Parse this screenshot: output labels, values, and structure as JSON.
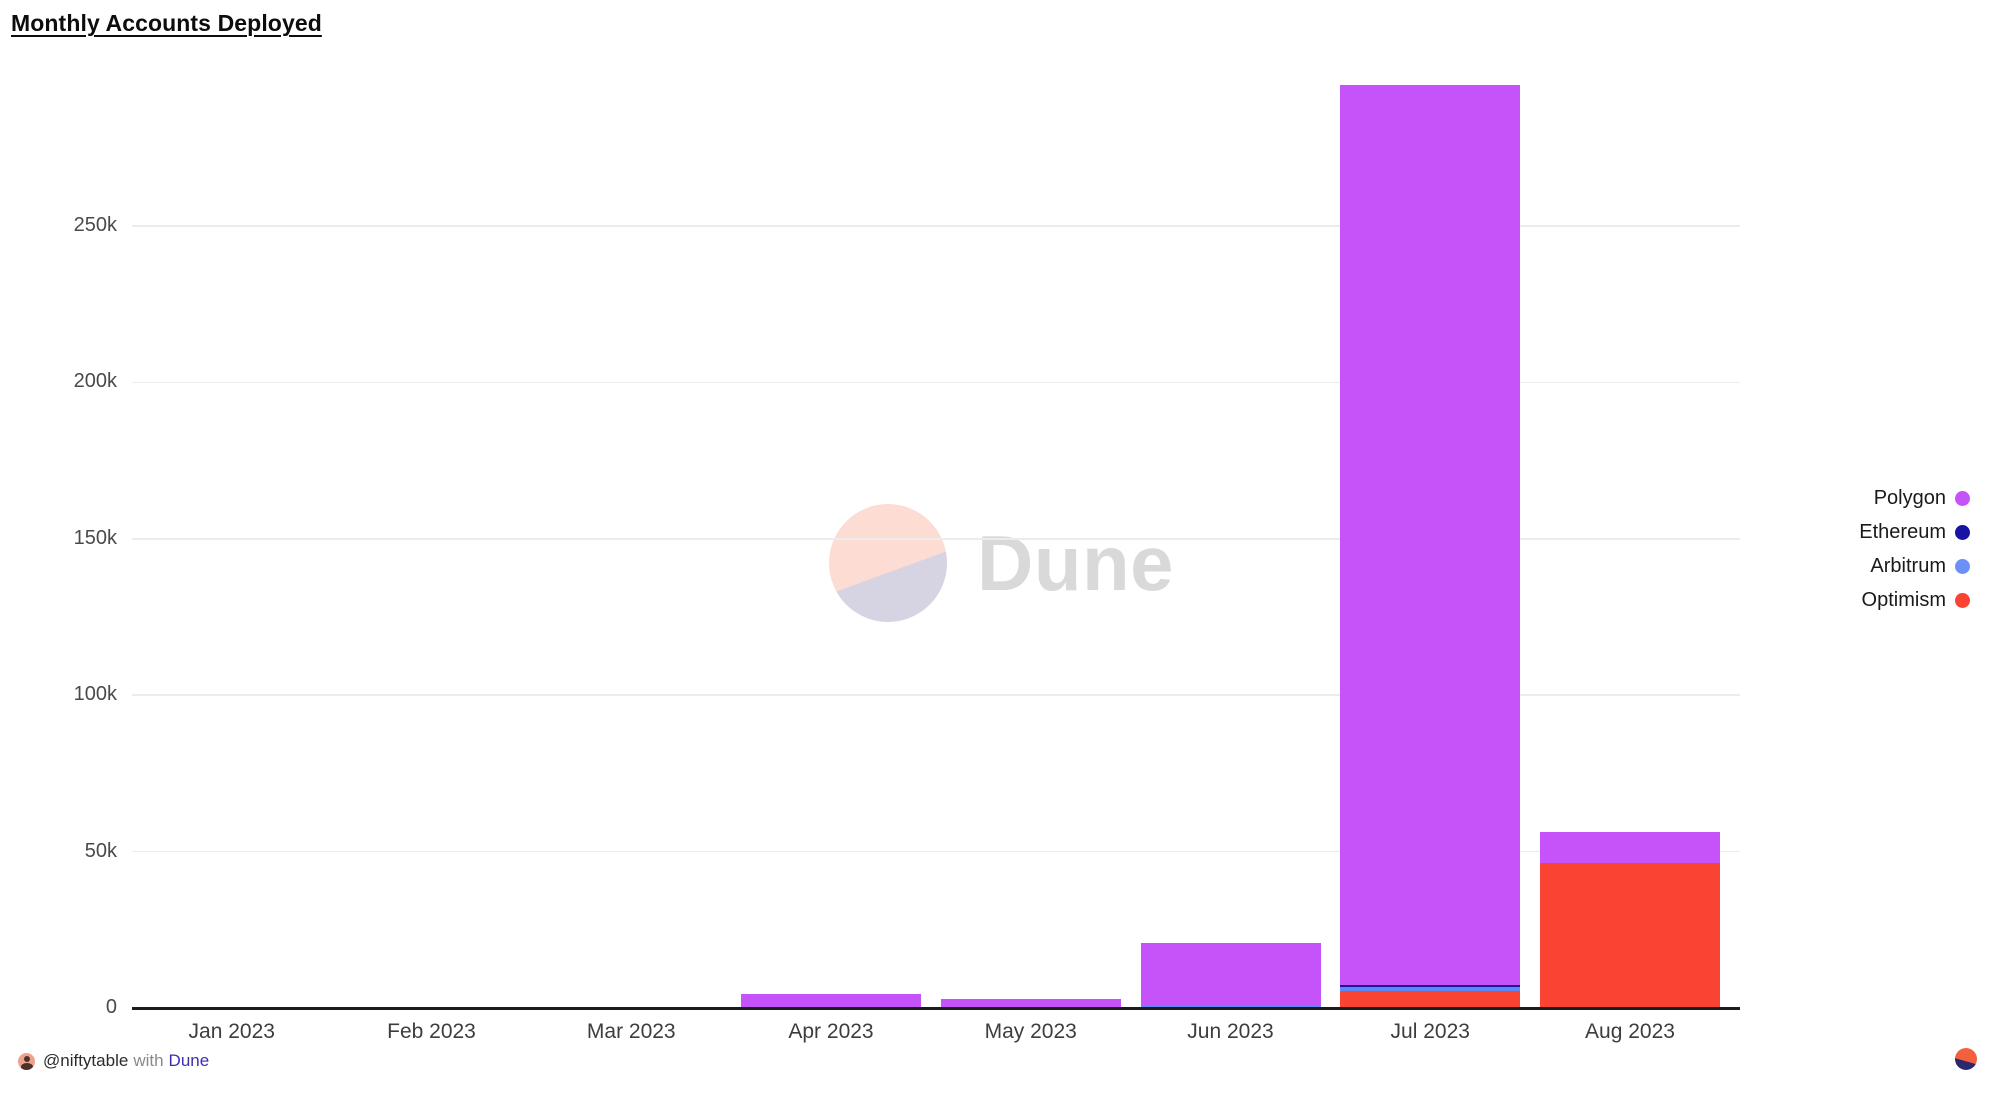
{
  "title": "Monthly Accounts Deployed",
  "watermark": {
    "text": "Dune"
  },
  "footer": {
    "author": "@niftytable",
    "connector": "with",
    "brand": "Dune"
  },
  "legend": [
    {
      "label": "Polygon",
      "color": "#c653fa"
    },
    {
      "label": "Ethereum",
      "color": "#1714a3"
    },
    {
      "label": "Arbitrum",
      "color": "#6d8ff7"
    },
    {
      "label": "Optimism",
      "color": "#fa4332"
    }
  ],
  "chart_data": {
    "type": "bar",
    "stacked": true,
    "title": "Monthly Accounts Deployed",
    "xlabel": "",
    "ylabel": "",
    "categories": [
      "Jan 2023",
      "Feb 2023",
      "Mar 2023",
      "Apr 2023",
      "May 2023",
      "Jun 2023",
      "Jul 2023",
      "Aug 2023"
    ],
    "series": [
      {
        "name": "Polygon",
        "color": "#c653fa",
        "values": [
          0,
          0,
          0,
          4500,
          2900,
          20300,
          287700,
          9900
        ]
      },
      {
        "name": "Ethereum",
        "color": "#1714a3",
        "values": [
          0,
          0,
          0,
          0,
          0,
          0,
          600,
          0
        ]
      },
      {
        "name": "Arbitrum",
        "color": "#5e86f6",
        "values": [
          0,
          0,
          0,
          0,
          0,
          500,
          1400,
          0
        ]
      },
      {
        "name": "Optimism",
        "color": "#fa4332",
        "values": [
          0,
          0,
          0,
          0,
          0,
          0,
          5300,
          46400
        ]
      }
    ],
    "stack_order_bottom_to_top": [
      "Optimism",
      "Arbitrum",
      "Ethereum",
      "Polygon"
    ],
    "yticks": [
      0,
      50000,
      100000,
      150000,
      200000,
      250000
    ],
    "ytick_labels": [
      "0",
      "50k",
      "100k",
      "150k",
      "200k",
      "250k"
    ],
    "ylim": [
      0,
      295000
    ],
    "grid": "horizontal",
    "legend_position": "right"
  }
}
